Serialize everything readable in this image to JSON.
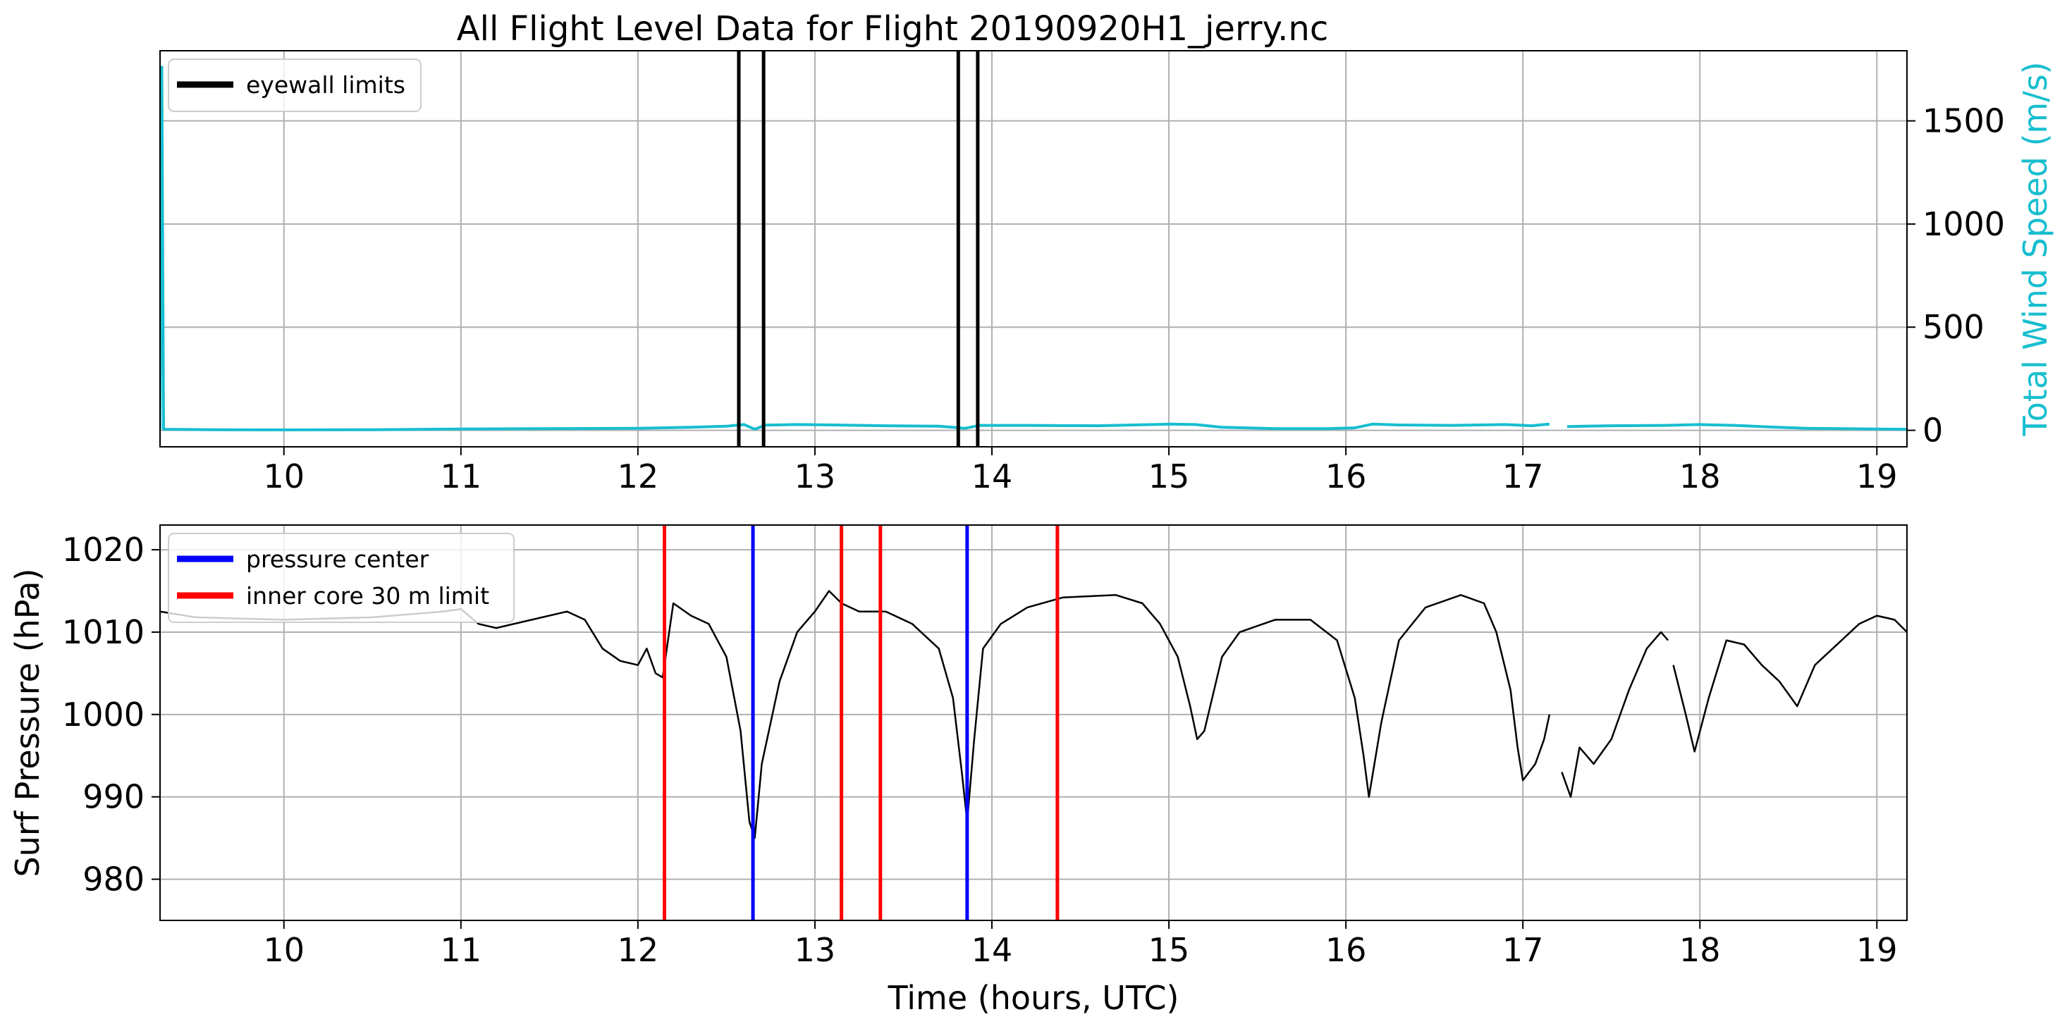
{
  "title": "All Flight Level Data for Flight 20190920H1_jerry.nc",
  "chart_data": [
    {
      "type": "line",
      "panel": "top",
      "xlim": [
        9.3,
        19.17
      ],
      "ylim": [
        -80,
        1840
      ],
      "ylabel": "Total Wind Speed (m/s)",
      "ylabel_color": "#17becf",
      "yaxis_side": "right",
      "grid": true,
      "x_ticks": [
        10,
        11,
        12,
        13,
        14,
        15,
        16,
        17,
        18,
        19
      ],
      "y_ticks": [
        0,
        500,
        1000,
        1500
      ],
      "legend": {
        "placement": "top-left",
        "entries": [
          {
            "label": "eyewall limits",
            "color": "#000000"
          }
        ]
      },
      "vlines": [
        {
          "x": 12.57,
          "color": "#000000",
          "legend": "eyewall limits"
        },
        {
          "x": 12.71,
          "color": "#000000"
        },
        {
          "x": 13.81,
          "color": "#000000"
        },
        {
          "x": 13.92,
          "color": "#000000"
        }
      ],
      "series": [
        {
          "color": "#17becf",
          "segments": [
            [
              [
                9.3,
                5
              ],
              [
                9.31,
                1760
              ],
              [
                9.32,
                5
              ],
              [
                9.6,
                3
              ],
              [
                10.0,
                2
              ],
              [
                10.5,
                3
              ],
              [
                11.0,
                6
              ],
              [
                11.5,
                8
              ],
              [
                12.0,
                10
              ],
              [
                12.3,
                15
              ],
              [
                12.5,
                20
              ],
              [
                12.6,
                28
              ],
              [
                12.66,
                5
              ],
              [
                12.72,
                25
              ],
              [
                12.9,
                28
              ],
              [
                13.1,
                26
              ],
              [
                13.4,
                22
              ],
              [
                13.7,
                20
              ],
              [
                13.85,
                10
              ],
              [
                13.93,
                24
              ],
              [
                14.2,
                24
              ],
              [
                14.6,
                22
              ],
              [
                15.0,
                30
              ],
              [
                15.15,
                28
              ],
              [
                15.3,
                15
              ],
              [
                15.6,
                8
              ],
              [
                15.9,
                8
              ],
              [
                16.05,
                12
              ],
              [
                16.15,
                30
              ],
              [
                16.3,
                26
              ],
              [
                16.6,
                24
              ],
              [
                16.9,
                28
              ],
              [
                17.05,
                22
              ],
              [
                17.12,
                28
              ],
              [
                17.15,
                30
              ]
            ],
            [
              [
                17.25,
                18
              ],
              [
                17.35,
                20
              ],
              [
                17.5,
                22
              ],
              [
                17.8,
                24
              ],
              [
                18.0,
                28
              ],
              [
                18.2,
                24
              ],
              [
                18.4,
                16
              ],
              [
                18.6,
                10
              ],
              [
                18.8,
                8
              ],
              [
                19.0,
                6
              ],
              [
                19.17,
                5
              ]
            ]
          ]
        }
      ]
    },
    {
      "type": "line",
      "panel": "bottom",
      "xlim": [
        9.3,
        19.17
      ],
      "ylim": [
        975,
        1023
      ],
      "xlabel": "Time (hours, UTC)",
      "ylabel": "Surf Pressure (hPa)",
      "grid": true,
      "x_ticks": [
        10,
        11,
        12,
        13,
        14,
        15,
        16,
        17,
        18,
        19
      ],
      "y_ticks": [
        980,
        990,
        1000,
        1010,
        1020
      ],
      "legend": {
        "placement": "top-left",
        "entries": [
          {
            "label": "pressure center",
            "color": "#0000ff"
          },
          {
            "label": "inner core 30 m limit",
            "color": "#ff0000"
          }
        ]
      },
      "vlines": [
        {
          "x": 12.15,
          "color": "#ff0000",
          "legend": "inner core 30 m limit"
        },
        {
          "x": 12.65,
          "color": "#0000ff",
          "legend": "pressure center"
        },
        {
          "x": 13.15,
          "color": "#ff0000"
        },
        {
          "x": 13.37,
          "color": "#ff0000"
        },
        {
          "x": 13.86,
          "color": "#0000ff"
        },
        {
          "x": 14.37,
          "color": "#ff0000"
        }
      ],
      "series": [
        {
          "color": "#000000",
          "segments": [
            [
              [
                9.3,
                1012.5
              ],
              [
                9.5,
                1011.8
              ],
              [
                10.0,
                1011.5
              ],
              [
                10.5,
                1011.8
              ],
              [
                10.9,
                1012.5
              ],
              [
                11.0,
                1012.8
              ],
              [
                11.1,
                1011
              ],
              [
                11.2,
                1010.5
              ],
              [
                11.4,
                1011.5
              ],
              [
                11.6,
                1012.5
              ],
              [
                11.7,
                1011.5
              ],
              [
                11.8,
                1008
              ],
              [
                11.9,
                1006.5
              ],
              [
                12.0,
                1006
              ],
              [
                12.05,
                1008
              ],
              [
                12.1,
                1005
              ],
              [
                12.14,
                1004.5
              ],
              [
                12.2,
                1013.5
              ],
              [
                12.3,
                1012
              ],
              [
                12.4,
                1011
              ],
              [
                12.5,
                1007
              ],
              [
                12.58,
                998
              ],
              [
                12.63,
                987
              ],
              [
                12.66,
                985
              ],
              [
                12.7,
                994
              ],
              [
                12.8,
                1004
              ],
              [
                12.9,
                1010
              ],
              [
                13.0,
                1012.5
              ],
              [
                13.08,
                1015
              ],
              [
                13.15,
                1013.5
              ],
              [
                13.25,
                1012.5
              ],
              [
                13.4,
                1012.5
              ],
              [
                13.55,
                1011
              ],
              [
                13.7,
                1008
              ],
              [
                13.78,
                1002
              ],
              [
                13.83,
                993
              ],
              [
                13.86,
                987
              ],
              [
                13.9,
                997
              ],
              [
                13.95,
                1008
              ],
              [
                14.05,
                1011
              ],
              [
                14.2,
                1013
              ],
              [
                14.4,
                1014.2
              ],
              [
                14.7,
                1014.5
              ],
              [
                14.85,
                1013.5
              ],
              [
                14.95,
                1011
              ],
              [
                15.05,
                1007
              ],
              [
                15.12,
                1001
              ],
              [
                15.16,
                997
              ],
              [
                15.2,
                998
              ],
              [
                15.3,
                1007
              ],
              [
                15.4,
                1010
              ],
              [
                15.6,
                1011.5
              ],
              [
                15.8,
                1011.5
              ],
              [
                15.95,
                1009
              ],
              [
                16.05,
                1002
              ],
              [
                16.1,
                995
              ],
              [
                16.13,
                990
              ],
              [
                16.2,
                999
              ],
              [
                16.3,
                1009
              ],
              [
                16.45,
                1013
              ],
              [
                16.65,
                1014.5
              ],
              [
                16.78,
                1013.5
              ],
              [
                16.85,
                1010
              ],
              [
                16.93,
                1003
              ],
              [
                16.97,
                996
              ],
              [
                17.0,
                992
              ],
              [
                17.07,
                994
              ],
              [
                17.12,
                997
              ],
              [
                17.15,
                1000
              ]
            ],
            [
              [
                17.22,
                993
              ],
              [
                17.27,
                990
              ],
              [
                17.32,
                996
              ],
              [
                17.4,
                994
              ],
              [
                17.5,
                997
              ],
              [
                17.6,
                1003
              ],
              [
                17.7,
                1008
              ],
              [
                17.78,
                1010
              ],
              [
                17.82,
                1009
              ]
            ],
            [
              [
                17.85,
                1006
              ],
              [
                17.92,
                1000
              ],
              [
                17.97,
                995.5
              ],
              [
                18.05,
                1002
              ],
              [
                18.15,
                1009
              ],
              [
                18.25,
                1008.5
              ],
              [
                18.35,
                1006
              ],
              [
                18.45,
                1004
              ],
              [
                18.55,
                1001
              ],
              [
                18.65,
                1006
              ],
              [
                18.75,
                1008
              ],
              [
                18.9,
                1011
              ],
              [
                19.0,
                1012
              ],
              [
                19.1,
                1011.5
              ],
              [
                19.17,
                1010
              ]
            ]
          ]
        }
      ]
    }
  ]
}
